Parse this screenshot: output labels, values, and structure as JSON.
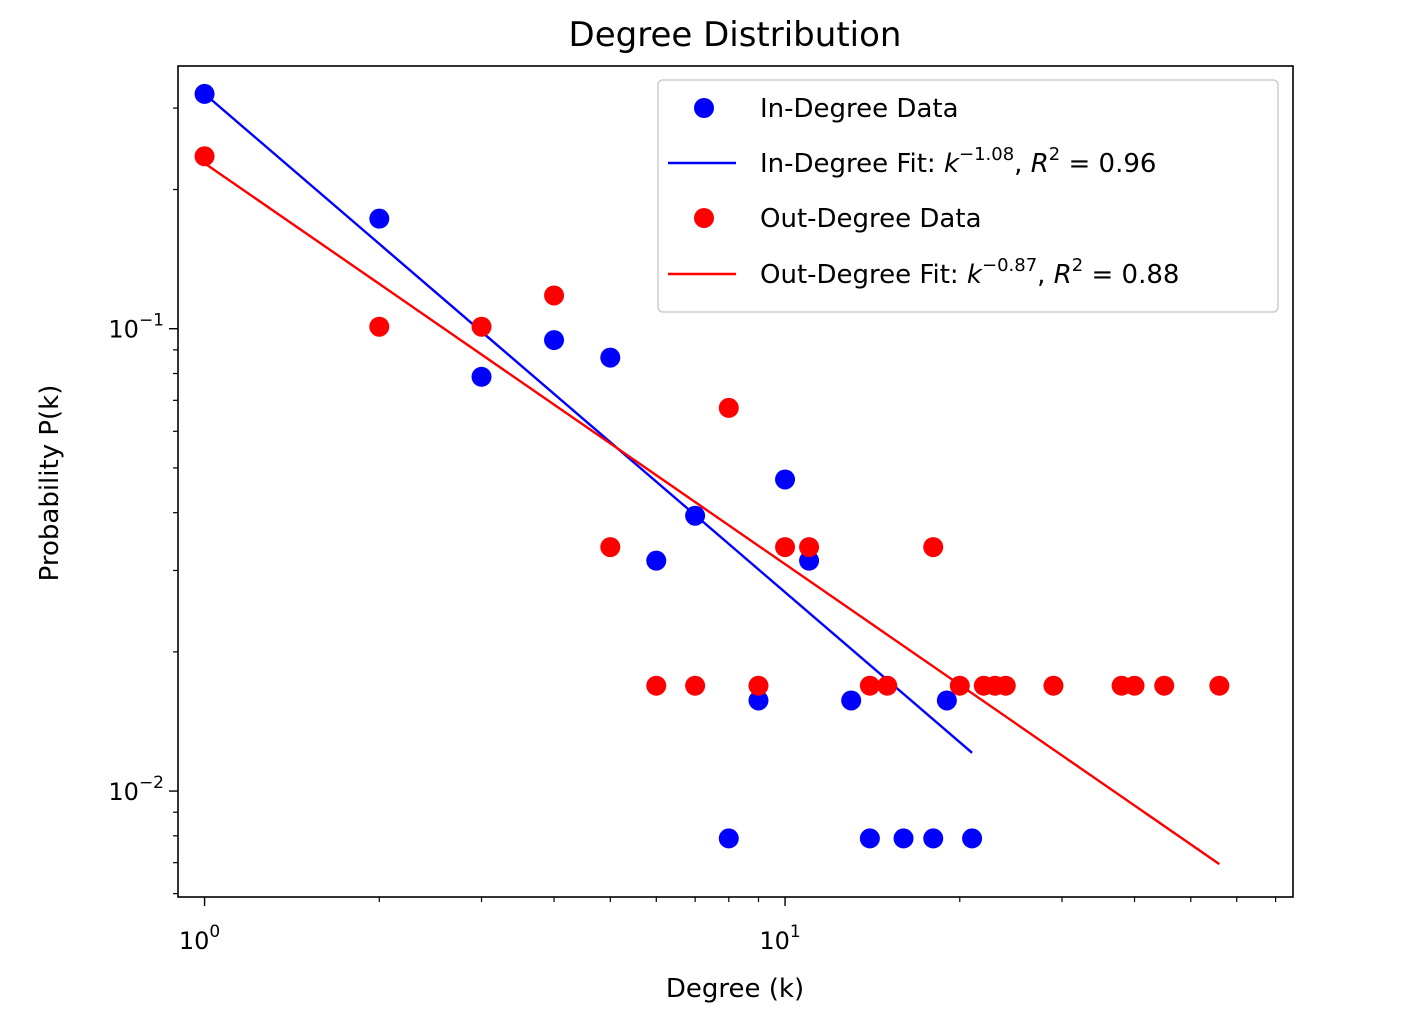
{
  "chart_data": {
    "type": "scatter",
    "title": "Degree Distribution",
    "xlabel": "Degree (k)",
    "ylabel": "Probability P(k)",
    "xscale": "log",
    "yscale": "log",
    "xlim": [
      0.9,
      75
    ],
    "ylim": [
      0.0059,
      0.37
    ],
    "x_ticks": [
      {
        "value": 1,
        "base": "10",
        "exp": "0"
      },
      {
        "value": 10,
        "base": "10",
        "exp": "1"
      }
    ],
    "y_ticks": [
      {
        "value": 0.1,
        "base": "10",
        "exp": "−1"
      },
      {
        "value": 0.01,
        "base": "10",
        "exp": "−2"
      }
    ],
    "grid": false,
    "legend_position": "top-right",
    "series": [
      {
        "kind": "scatter",
        "color": "#0000ff",
        "label": {
          "text": "In-Degree Data"
        },
        "points": [
          [
            1,
            0.322
          ],
          [
            2,
            0.173
          ],
          [
            3,
            0.0787
          ],
          [
            4,
            0.0945
          ],
          [
            5,
            0.0866
          ],
          [
            6,
            0.0315
          ],
          [
            7,
            0.0394
          ],
          [
            8,
            0.0079
          ],
          [
            9,
            0.0157
          ],
          [
            10,
            0.0472
          ],
          [
            11,
            0.0315
          ],
          [
            13,
            0.0157
          ],
          [
            14,
            0.0079
          ],
          [
            16,
            0.0079
          ],
          [
            18,
            0.0079
          ],
          [
            19,
            0.0157
          ],
          [
            21,
            0.0079
          ]
        ]
      },
      {
        "kind": "line",
        "color": "#0000ff",
        "label": {
          "prefix": "In-Degree Fit: ",
          "base": "k",
          "exp": "−1.08",
          "r2": "R",
          "r2_exp": "2",
          "r2_value": " = 0.96"
        },
        "points": [
          [
            1,
            0.322
          ],
          [
            21,
            0.0121
          ]
        ]
      },
      {
        "kind": "scatter",
        "color": "#ff0000",
        "label": {
          "text": "Out-Degree Data"
        },
        "points": [
          [
            1,
            0.236
          ],
          [
            2,
            0.101
          ],
          [
            3,
            0.101
          ],
          [
            4,
            0.118
          ],
          [
            5,
            0.0337
          ],
          [
            6,
            0.0169
          ],
          [
            7,
            0.0169
          ],
          [
            8,
            0.0674
          ],
          [
            9,
            0.0169
          ],
          [
            10,
            0.0337
          ],
          [
            11,
            0.0337
          ],
          [
            14,
            0.0169
          ],
          [
            15,
            0.0169
          ],
          [
            18,
            0.0337
          ],
          [
            20,
            0.0169
          ],
          [
            22,
            0.0169
          ],
          [
            23,
            0.0169
          ],
          [
            24,
            0.0169
          ],
          [
            29,
            0.0169
          ],
          [
            38,
            0.0169
          ],
          [
            40,
            0.0169
          ],
          [
            45,
            0.0169
          ],
          [
            56,
            0.0169
          ]
        ]
      },
      {
        "kind": "line",
        "color": "#ff0000",
        "label": {
          "prefix": "Out-Degree Fit: ",
          "base": "k",
          "exp": "−0.87",
          "r2": "R",
          "r2_exp": "2",
          "r2_value": " = 0.88"
        },
        "points": [
          [
            1,
            0.228
          ],
          [
            56,
            0.00695
          ]
        ]
      }
    ]
  }
}
